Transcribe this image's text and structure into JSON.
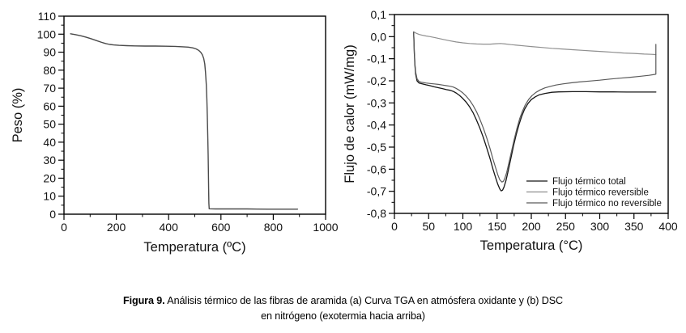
{
  "caption": {
    "label": "Figura 9.",
    "line1": " Análisis térmico de las fibras de aramida (a) Curva TGA en atmósfera oxidante y (b) DSC",
    "line2": "en nitrógeno (exotermia hacia arriba)"
  },
  "chart_data": [
    {
      "id": "tga",
      "type": "line",
      "title": "",
      "xlabel": "Temperatura (ºC)",
      "ylabel": "Peso (%)",
      "xlim": [
        0,
        1000
      ],
      "ylim": [
        0,
        110
      ],
      "xticks": [
        0,
        200,
        400,
        600,
        800,
        1000
      ],
      "xtick_labels": [
        "0",
        "200",
        "400",
        "600",
        "800",
        "1000"
      ],
      "yticks": [
        0,
        10,
        20,
        30,
        40,
        50,
        60,
        70,
        80,
        90,
        100,
        110
      ],
      "ytick_labels": [
        "0",
        "10",
        "20",
        "30",
        "40",
        "50",
        "60",
        "70",
        "80",
        "90",
        "100",
        "110"
      ],
      "minor_ticks": "midpoints",
      "grid": false,
      "legend": null,
      "series": [
        {
          "name": "Peso",
          "slug": "tga-curve",
          "color": "#4a4a4a",
          "width": 1.4,
          "points": [
            [
              25,
              100.2
            ],
            [
              45,
              99.7
            ],
            [
              65,
              99.1
            ],
            [
              85,
              98.3
            ],
            [
              105,
              97.4
            ],
            [
              125,
              96.4
            ],
            [
              145,
              95.4
            ],
            [
              160,
              94.8
            ],
            [
              175,
              94.3
            ],
            [
              190,
              94.0
            ],
            [
              210,
              93.8
            ],
            [
              240,
              93.6
            ],
            [
              270,
              93.5
            ],
            [
              310,
              93.4
            ],
            [
              350,
              93.4
            ],
            [
              390,
              93.3
            ],
            [
              425,
              93.2
            ],
            [
              455,
              93.0
            ],
            [
              475,
              92.8
            ],
            [
              492,
              92.4
            ],
            [
              505,
              91.8
            ],
            [
              515,
              91.0
            ],
            [
              523,
              89.9
            ],
            [
              529,
              88.5
            ],
            [
              534,
              86.5
            ],
            [
              538,
              83.5
            ],
            [
              541,
              79
            ],
            [
              544,
              72
            ],
            [
              546,
              64
            ],
            [
              548,
              54
            ],
            [
              550,
              42
            ],
            [
              551,
              33
            ],
            [
              552,
              24
            ],
            [
              553,
              14
            ],
            [
              554,
              6
            ],
            [
              555,
              3.0
            ],
            [
              580,
              2.9
            ],
            [
              620,
              2.9
            ],
            [
              660,
              2.9
            ],
            [
              700,
              2.9
            ],
            [
              740,
              2.85
            ],
            [
              780,
              2.8
            ],
            [
              820,
              2.8
            ],
            [
              860,
              2.8
            ],
            [
              893,
              2.8
            ]
          ]
        }
      ]
    },
    {
      "id": "dsc",
      "type": "line",
      "title": "",
      "xlabel": "Temperatura (°C)",
      "ylabel": "Flujo de calor (mW/mg)",
      "xlim": [
        0,
        400
      ],
      "ylim": [
        -0.8,
        0.1
      ],
      "xticks": [
        0,
        50,
        100,
        150,
        200,
        250,
        300,
        350,
        400
      ],
      "xtick_labels": [
        "0",
        "50",
        "100",
        "150",
        "200",
        "250",
        "300",
        "350",
        "400"
      ],
      "yticks": [
        -0.8,
        -0.7,
        -0.6,
        -0.5,
        -0.4,
        -0.3,
        -0.2,
        -0.1,
        0.0,
        0.1
      ],
      "ytick_labels": [
        "-0,8",
        "-0,7",
        "-0,6",
        "-0,5",
        "-0,4",
        "-0,3",
        "-0,2",
        "-0,1",
        "0,0",
        "0,1"
      ],
      "minor_ticks": "midpoints",
      "grid": false,
      "legend": {
        "position": "lower-right",
        "entries": [
          "Flujo térmico total",
          "Flujo térmico reversible",
          "Flujo térmico no reversible"
        ]
      },
      "series": [
        {
          "name": "Flujo térmico total",
          "slug": "flujo-termico-total-curve",
          "color": "#161616",
          "width": 1.3,
          "points": [
            [
              28,
              0.02
            ],
            [
              28.5,
              -0.02
            ],
            [
              29,
              -0.07
            ],
            [
              30,
              -0.13
            ],
            [
              31,
              -0.17
            ],
            [
              33,
              -0.2
            ],
            [
              36,
              -0.21
            ],
            [
              40,
              -0.213
            ],
            [
              46,
              -0.218
            ],
            [
              52,
              -0.222
            ],
            [
              58,
              -0.227
            ],
            [
              64,
              -0.231
            ],
            [
              70,
              -0.235
            ],
            [
              76,
              -0.24
            ],
            [
              82,
              -0.243
            ],
            [
              86,
              -0.248
            ],
            [
              90,
              -0.255
            ],
            [
              95,
              -0.266
            ],
            [
              100,
              -0.28
            ],
            [
              105,
              -0.297
            ],
            [
              110,
              -0.318
            ],
            [
              115,
              -0.345
            ],
            [
              120,
              -0.378
            ],
            [
              125,
              -0.415
            ],
            [
              130,
              -0.458
            ],
            [
              135,
              -0.505
            ],
            [
              140,
              -0.555
            ],
            [
              144,
              -0.6
            ],
            [
              148,
              -0.64
            ],
            [
              151,
              -0.668
            ],
            [
              154,
              -0.69
            ],
            [
              156,
              -0.698
            ],
            [
              158,
              -0.695
            ],
            [
              160,
              -0.682
            ],
            [
              163,
              -0.652
            ],
            [
              166,
              -0.61
            ],
            [
              170,
              -0.552
            ],
            [
              174,
              -0.495
            ],
            [
              178,
              -0.443
            ],
            [
              182,
              -0.398
            ],
            [
              186,
              -0.36
            ],
            [
              190,
              -0.33
            ],
            [
              195,
              -0.303
            ],
            [
              200,
              -0.285
            ],
            [
              206,
              -0.272
            ],
            [
              212,
              -0.263
            ],
            [
              220,
              -0.257
            ],
            [
              230,
              -0.252
            ],
            [
              240,
              -0.25
            ],
            [
              260,
              -0.249
            ],
            [
              280,
              -0.249
            ],
            [
              300,
              -0.25
            ],
            [
              320,
              -0.25
            ],
            [
              340,
              -0.251
            ],
            [
              360,
              -0.251
            ],
            [
              382,
              -0.251
            ]
          ]
        },
        {
          "name": "Flujo térmico reversible",
          "slug": "flujo-termico-reversible-curve",
          "color": "#8f8f8f",
          "width": 1.2,
          "points": [
            [
              28,
              0.022
            ],
            [
              32,
              0.015
            ],
            [
              36,
              0.01
            ],
            [
              40,
              0.007
            ],
            [
              46,
              0.003
            ],
            [
              52,
              0.0
            ],
            [
              60,
              -0.005
            ],
            [
              70,
              -0.012
            ],
            [
              80,
              -0.018
            ],
            [
              90,
              -0.024
            ],
            [
              100,
              -0.028
            ],
            [
              110,
              -0.031
            ],
            [
              120,
              -0.033
            ],
            [
              130,
              -0.034
            ],
            [
              140,
              -0.034
            ],
            [
              148,
              -0.032
            ],
            [
              155,
              -0.031
            ],
            [
              162,
              -0.033
            ],
            [
              170,
              -0.036
            ],
            [
              180,
              -0.039
            ],
            [
              190,
              -0.042
            ],
            [
              200,
              -0.045
            ],
            [
              215,
              -0.049
            ],
            [
              230,
              -0.053
            ],
            [
              245,
              -0.056
            ],
            [
              260,
              -0.059
            ],
            [
              275,
              -0.062
            ],
            [
              290,
              -0.065
            ],
            [
              305,
              -0.068
            ],
            [
              320,
              -0.071
            ],
            [
              335,
              -0.074
            ],
            [
              350,
              -0.076
            ],
            [
              365,
              -0.079
            ],
            [
              375,
              -0.08
            ],
            [
              382,
              -0.081
            ]
          ]
        },
        {
          "name": "Flujo térmico no reversible",
          "slug": "flujo-termico-no-reversible-curve",
          "color": "#5a5a5a",
          "width": 1.2,
          "points": [
            [
              28,
              0.02
            ],
            [
              28.5,
              -0.01
            ],
            [
              29,
              -0.06
            ],
            [
              30,
              -0.12
            ],
            [
              31,
              -0.16
            ],
            [
              33,
              -0.19
            ],
            [
              36,
              -0.203
            ],
            [
              40,
              -0.207
            ],
            [
              46,
              -0.21
            ],
            [
              52,
              -0.212
            ],
            [
              58,
              -0.214
            ],
            [
              64,
              -0.216
            ],
            [
              70,
              -0.219
            ],
            [
              76,
              -0.222
            ],
            [
              82,
              -0.225
            ],
            [
              86,
              -0.228
            ],
            [
              90,
              -0.234
            ],
            [
              95,
              -0.243
            ],
            [
              100,
              -0.255
            ],
            [
              105,
              -0.27
            ],
            [
              110,
              -0.288
            ],
            [
              115,
              -0.312
            ],
            [
              120,
              -0.34
            ],
            [
              125,
              -0.375
            ],
            [
              130,
              -0.415
            ],
            [
              135,
              -0.46
            ],
            [
              140,
              -0.51
            ],
            [
              144,
              -0.555
            ],
            [
              148,
              -0.595
            ],
            [
              151,
              -0.625
            ],
            [
              154,
              -0.648
            ],
            [
              157,
              -0.658
            ],
            [
              159,
              -0.655
            ],
            [
              161,
              -0.645
            ],
            [
              164,
              -0.615
            ],
            [
              167,
              -0.575
            ],
            [
              171,
              -0.52
            ],
            [
              175,
              -0.465
            ],
            [
              179,
              -0.415
            ],
            [
              183,
              -0.372
            ],
            [
              187,
              -0.338
            ],
            [
              191,
              -0.31
            ],
            [
              196,
              -0.285
            ],
            [
              201,
              -0.267
            ],
            [
              207,
              -0.252
            ],
            [
              213,
              -0.241
            ],
            [
              220,
              -0.232
            ],
            [
              228,
              -0.225
            ],
            [
              236,
              -0.219
            ],
            [
              246,
              -0.214
            ],
            [
              258,
              -0.209
            ],
            [
              270,
              -0.205
            ],
            [
              285,
              -0.201
            ],
            [
              300,
              -0.197
            ],
            [
              315,
              -0.192
            ],
            [
              330,
              -0.188
            ],
            [
              345,
              -0.184
            ],
            [
              360,
              -0.179
            ],
            [
              372,
              -0.175
            ],
            [
              380,
              -0.171
            ],
            [
              382,
              -0.17
            ],
            [
              382,
              -0.035
            ]
          ]
        }
      ]
    }
  ]
}
